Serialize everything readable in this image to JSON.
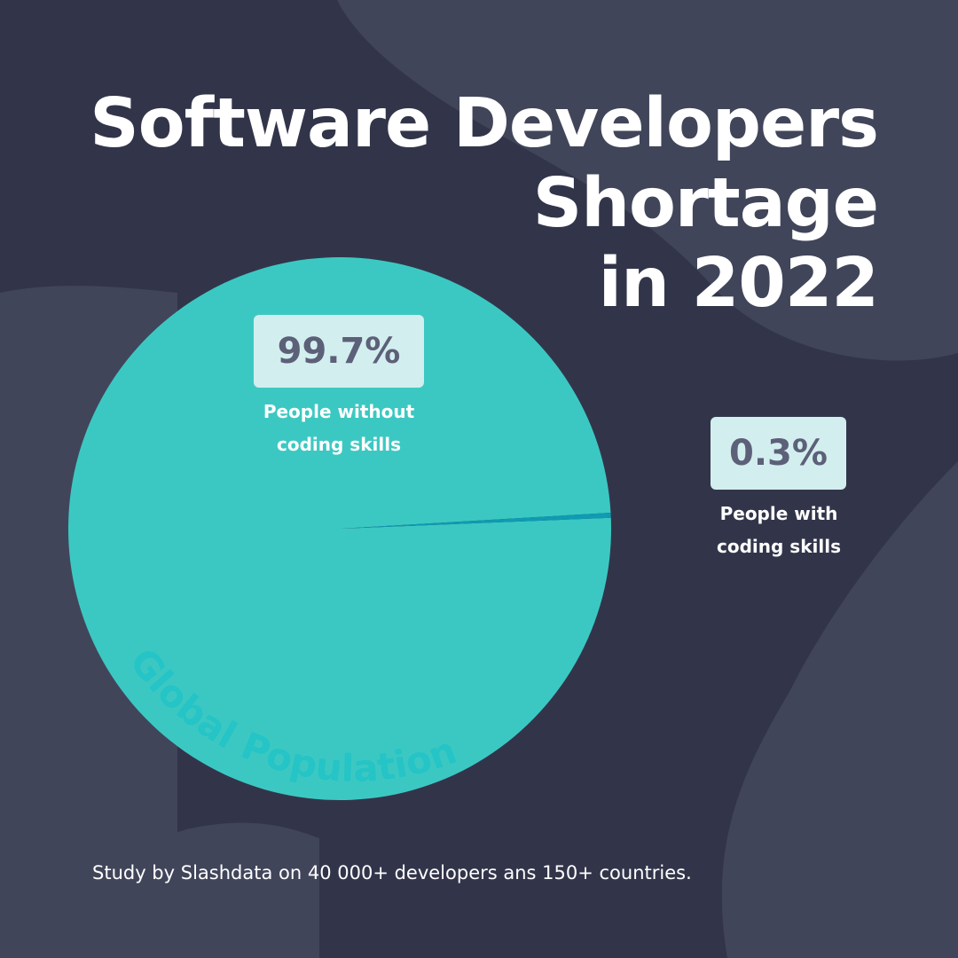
{
  "title": {
    "line1": "Software Developers",
    "line2": "Shortage",
    "line3": "in 2022"
  },
  "colors": {
    "background": "#32354a",
    "background_shape": "#41455a",
    "slice_major": "#3cc8c2",
    "slice_minor": "#0e9bb3",
    "badge": "#d3eeee",
    "badge_text": "#5c6078",
    "text": "#ffffff",
    "pie_watermark": "#25c4c6"
  },
  "chart_data": {
    "type": "pie",
    "title": "Software Developers Shortage in 2022",
    "slices": [
      {
        "label": "People without coding skills",
        "value": 99.7,
        "display": "99.7%"
      },
      {
        "label": "People with coding skills",
        "value": 0.3,
        "display": "0.3%"
      }
    ],
    "pie_label": "Global Population",
    "unit": "%"
  },
  "labels": {
    "major": {
      "value": "99.7%",
      "line1": "People without",
      "line2": "coding skills"
    },
    "minor": {
      "value": "0.3%",
      "line1": "People with",
      "line2": "coding skills"
    }
  },
  "source": "Study by Slashdata on 40 000+ developers ans 150+ countries."
}
